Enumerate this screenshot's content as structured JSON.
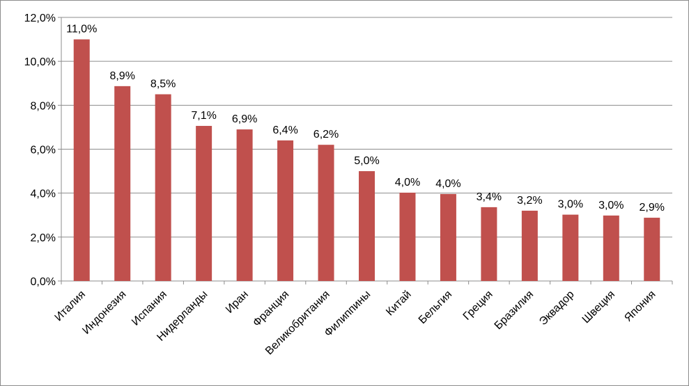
{
  "chart_data": {
    "type": "bar",
    "categories": [
      "Италия",
      "Индонезия",
      "Испания",
      "Нидерланды",
      "Иран",
      "Франция",
      "Великобритания",
      "Филиппины",
      "Китай",
      "Бельгия",
      "Греция",
      "Бразилия",
      "Эквадор",
      "Швеция",
      "Япония"
    ],
    "values": [
      11.0,
      8.87,
      8.5,
      7.06,
      6.9,
      6.4,
      6.2,
      5.0,
      4.02,
      3.96,
      3.36,
      3.2,
      3.02,
      2.98,
      2.88
    ],
    "value_labels": [
      "11,0%",
      "8,9%",
      "8,5%",
      "7,1%",
      "6,9%",
      "6,4%",
      "6,2%",
      "5,0%",
      "4,0%",
      "4,0%",
      "3,4%",
      "3,2%",
      "3,0%",
      "3,0%",
      "2,9%"
    ],
    "y_ticks": [
      "0,0%",
      "2,0%",
      "4,0%",
      "6,0%",
      "8,0%",
      "10,0%",
      "12,0%"
    ],
    "ylim": [
      0,
      12
    ],
    "grid": true,
    "bar_color": "#c0504d",
    "title": "",
    "xlabel": "",
    "ylabel": ""
  }
}
